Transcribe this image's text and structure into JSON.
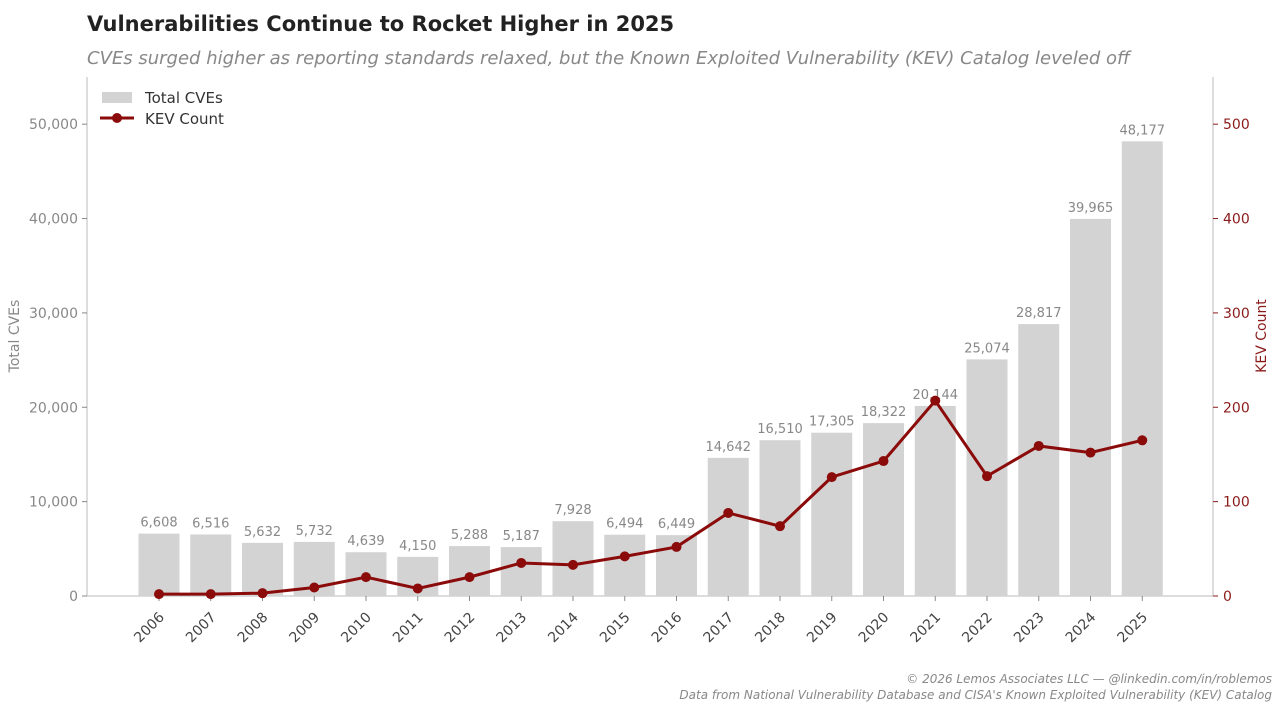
{
  "chart_data": {
    "type": "bar+line",
    "title": "Vulnerabilities Continue to Rocket Higher in 2025",
    "subtitle": "CVEs surged higher as reporting standards relaxed, but the Known Exploited Vulnerability (KEV) Catalog leveled off",
    "categories": [
      "2006",
      "2007",
      "2008",
      "2009",
      "2010",
      "2011",
      "2012",
      "2013",
      "2014",
      "2015",
      "2016",
      "2017",
      "2018",
      "2019",
      "2020",
      "2021",
      "2022",
      "2023",
      "2024",
      "2025"
    ],
    "series": [
      {
        "name": "Total CVEs",
        "type": "bar",
        "axis": "left",
        "color": "#d3d3d3",
        "values": [
          6608,
          6516,
          5632,
          5732,
          4639,
          4150,
          5288,
          5187,
          7928,
          6494,
          6449,
          14642,
          16510,
          17305,
          18322,
          20144,
          25074,
          28817,
          39965,
          48177
        ],
        "labels": [
          "6,608",
          "6,516",
          "5,632",
          "5,732",
          "4,639",
          "4,150",
          "5,288",
          "5,187",
          "7,928",
          "6,494",
          "6,449",
          "14,642",
          "16,510",
          "17,305",
          "18,322",
          "20,144",
          "25,074",
          "28,817",
          "39,965",
          "48,177"
        ]
      },
      {
        "name": "KEV Count",
        "type": "line",
        "axis": "right",
        "color": "#8b0a0a",
        "values": [
          2,
          2,
          3,
          9,
          20,
          8,
          20,
          35,
          33,
          42,
          52,
          88,
          74,
          126,
          143,
          207,
          127,
          159,
          152,
          165
        ]
      }
    ],
    "ylabel": "Total CVEs",
    "y2label": "KEV Count",
    "ylim": [
      0,
      55000
    ],
    "y2lim": [
      0,
      550
    ],
    "yticks": [
      "0",
      "10,000",
      "20,000",
      "30,000",
      "40,000",
      "50,000"
    ],
    "y2ticks": [
      "0",
      "100",
      "200",
      "300",
      "400",
      "500"
    ],
    "legend": "top-left",
    "grid": false
  },
  "footer": {
    "credit": "© 2026 Lemos Associates LLC — @linkedin.com/in/roblemos",
    "source": "Data from National Vulnerability Database and CISA's Known Exploited Vulnerability (KEV) Catalog"
  }
}
